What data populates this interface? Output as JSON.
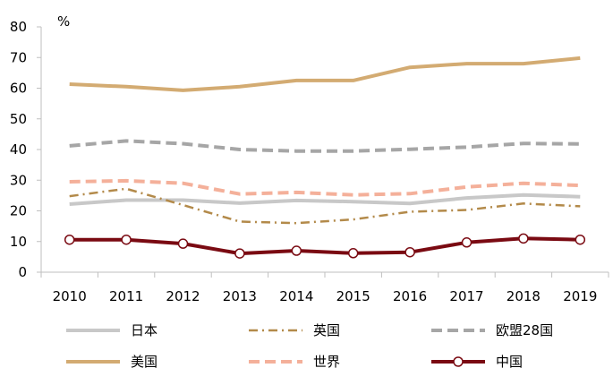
{
  "chart_data": {
    "type": "line",
    "unit_label": "%",
    "ylim": [
      0,
      80
    ],
    "y_ticks": [
      "0",
      "10",
      "20",
      "30",
      "40",
      "50",
      "60",
      "70",
      "80"
    ],
    "x": [
      "2010",
      "2011",
      "2012",
      "2013",
      "2014",
      "2015",
      "2016",
      "2017",
      "2018",
      "2019"
    ],
    "grid": false,
    "legend_position": "bottom",
    "series": [
      {
        "name": "日本",
        "color": "#c8c8c8",
        "style": "solid",
        "marker": "none",
        "values": [
          22.2,
          23.5,
          23.5,
          22.5,
          23.4,
          23.0,
          22.4,
          24.2,
          25.2,
          24.6
        ]
      },
      {
        "name": "英国",
        "color": "#b38a4a",
        "style": "dashdot",
        "marker": "none",
        "values": [
          24.8,
          27.2,
          21.9,
          16.5,
          16.0,
          17.2,
          19.7,
          20.3,
          22.4,
          21.5
        ]
      },
      {
        "name": "欧盟28国",
        "color": "#a6a6a6",
        "style": "dash",
        "marker": "none",
        "values": [
          41.2,
          42.8,
          41.9,
          40.0,
          39.5,
          39.5,
          40.1,
          40.8,
          42.0,
          41.8
        ]
      },
      {
        "name": "美国",
        "color": "#d3ab72",
        "style": "solid",
        "marker": "none",
        "values": [
          61.3,
          60.5,
          59.3,
          60.5,
          62.5,
          62.5,
          66.8,
          68.0,
          68.0,
          69.8
        ]
      },
      {
        "name": "世界",
        "color": "#f4b09a",
        "style": "dash",
        "marker": "none",
        "values": [
          29.5,
          29.8,
          29.0,
          25.5,
          26.0,
          25.2,
          25.6,
          27.8,
          29.0,
          28.3
        ]
      },
      {
        "name": "中国",
        "color": "#7a0a12",
        "style": "solid",
        "marker": "circle",
        "values": [
          10.6,
          10.6,
          9.3,
          6.1,
          7.0,
          6.2,
          6.5,
          9.7,
          11.0,
          10.6
        ]
      }
    ]
  }
}
